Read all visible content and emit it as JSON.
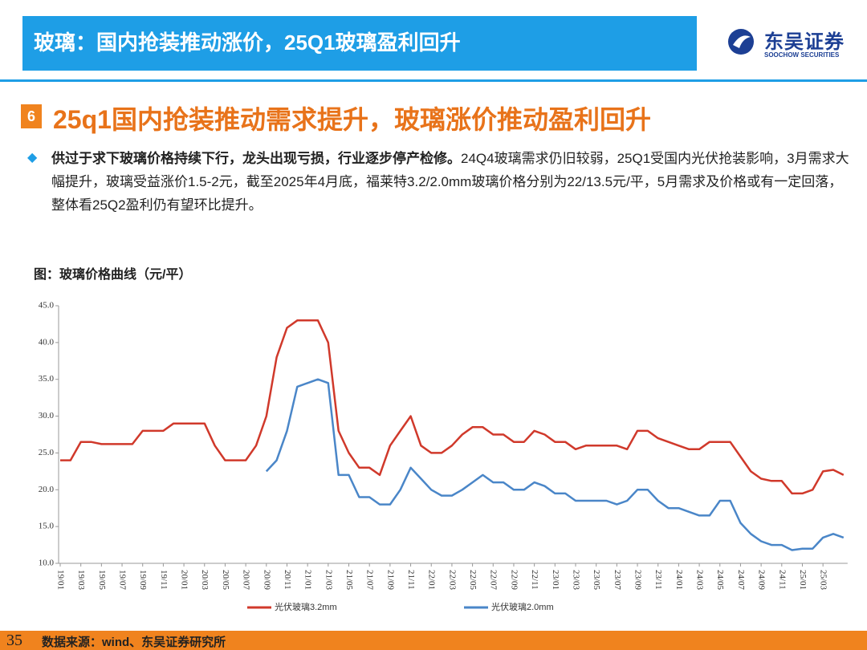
{
  "header": {
    "title": "玻璃：国内抢装推动涨价，25Q1玻璃盈利回升",
    "logo_cn": "东吴证券",
    "logo_en": "SOOCHOW SECURITIES"
  },
  "section": {
    "number": "6",
    "title": "25q1国内抢装推动需求提升，玻璃涨价推动盈利回升"
  },
  "bullet": {
    "bold": "供过于求下玻璃价格持续下行，龙头出现亏损，行业逐步停产检修。",
    "text": "24Q4玻璃需求仍旧较弱，25Q1受国内光伏抢装影响，3月需求大幅提升，玻璃受益涨价1.5-2元，截至2025年4月底，福莱特3.2/2.0mm玻璃价格分别为22/13.5元/平，5月需求及价格或有一定回落， 整体看25Q2盈利仍有望环比提升。"
  },
  "chart_data": {
    "type": "line",
    "title": "图：玻璃价格曲线（元/平）",
    "categories": [
      "19/01",
      null,
      "19/03",
      null,
      "19/05",
      null,
      "19/07",
      null,
      "19/09",
      null,
      "19/11",
      null,
      "20/01",
      null,
      "20/03",
      null,
      "20/05",
      null,
      "20/07",
      null,
      "20/09",
      null,
      "20/11",
      null,
      "21/01",
      null,
      "21/03",
      null,
      "21/05",
      null,
      "21/07",
      null,
      "21/09",
      null,
      "21/11",
      null,
      "22/01",
      null,
      "22/03",
      null,
      "22/05",
      null,
      "22/07",
      null,
      "22/09",
      null,
      "22/11",
      null,
      "23/01",
      null,
      "23/03",
      null,
      "23/05",
      null,
      "23/07",
      null,
      "23/09",
      null,
      "23/11",
      null,
      "24/01",
      null,
      "24/03",
      null,
      "24/05",
      null,
      "24/07",
      null,
      "24/09",
      null,
      "24/11",
      null,
      "25/01",
      null,
      "25/03",
      null,
      null
    ],
    "series": [
      {
        "name": "光伏玻璃3.2mm",
        "color": "#d0392b",
        "values": [
          24,
          24,
          26.5,
          26.5,
          26.2,
          26.2,
          26.2,
          26.2,
          28,
          28,
          28,
          29,
          29,
          29,
          29,
          26,
          24,
          24,
          24,
          26,
          30,
          38,
          42,
          43,
          43,
          43,
          40,
          28,
          25,
          23,
          23,
          22,
          26,
          28,
          30,
          26,
          25,
          25,
          26,
          27.5,
          28.5,
          28.5,
          27.5,
          27.5,
          26.5,
          26.5,
          28,
          27.5,
          26.5,
          26.5,
          25.5,
          26,
          26,
          26,
          26,
          25.5,
          28,
          28,
          27,
          26.5,
          26,
          25.5,
          25.5,
          26.5,
          26.5,
          26.5,
          24.5,
          22.5,
          21.5,
          21.2,
          21.2,
          19.5,
          19.5,
          20,
          22.5,
          22.7,
          22
        ]
      },
      {
        "name": "光伏玻璃2.0mm",
        "color": "#4a86c8",
        "values": [
          null,
          null,
          null,
          null,
          null,
          null,
          null,
          null,
          null,
          null,
          null,
          null,
          null,
          null,
          null,
          null,
          null,
          null,
          null,
          null,
          22.5,
          24,
          28,
          34,
          34.5,
          35,
          34.5,
          22,
          22,
          19,
          19,
          18,
          18,
          20,
          23,
          21.5,
          20,
          19.2,
          19.2,
          20,
          21,
          22,
          21,
          21,
          20,
          20,
          21,
          20.5,
          19.5,
          19.5,
          18.5,
          18.5,
          18.5,
          18.5,
          18,
          18.5,
          20,
          20,
          18.5,
          17.5,
          17.5,
          17,
          16.5,
          16.5,
          18.5,
          18.5,
          15.5,
          14,
          13,
          12.5,
          12.5,
          11.8,
          12,
          12,
          13.5,
          14,
          13.5
        ]
      }
    ],
    "ylim": [
      10,
      45
    ],
    "yticks": [
      {
        "value": 10,
        "label": "10.0"
      },
      {
        "value": 15,
        "label": "15.0"
      },
      {
        "value": 20,
        "label": "20.0"
      },
      {
        "value": 25,
        "label": "25.0"
      },
      {
        "value": 30,
        "label": "30.0"
      },
      {
        "value": 35,
        "label": "35.0"
      },
      {
        "value": 40,
        "label": "40.0"
      },
      {
        "value": 45,
        "label": "45.0"
      }
    ],
    "legend": "bottom"
  },
  "footer": {
    "page": "35",
    "source": "数据来源：wind、东吴证券研究所"
  }
}
